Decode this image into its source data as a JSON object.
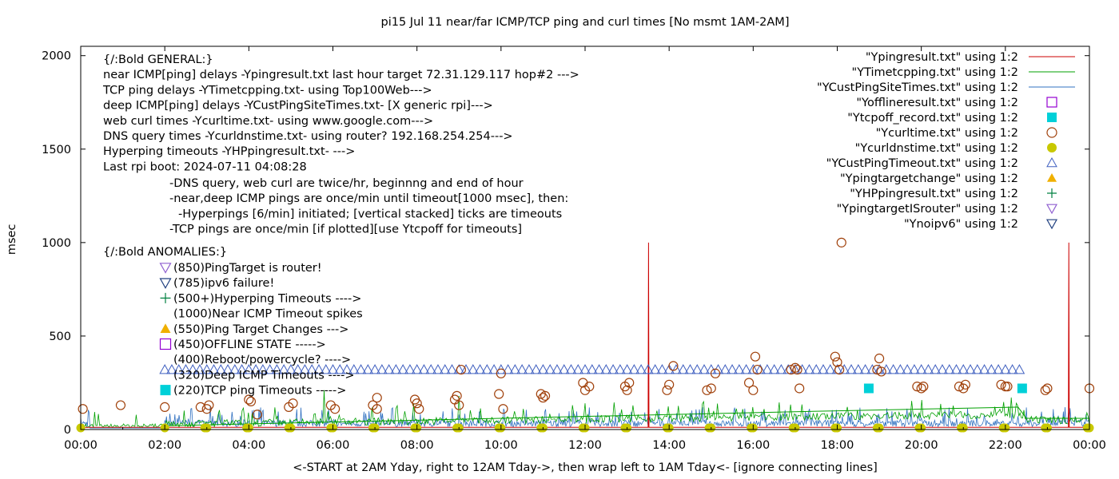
{
  "chart_data": {
    "type": "line",
    "title": "pi15 Jul 11  near/far ICMP/TCP ping and curl times [No msmt 1AM-2AM]",
    "xlabel": "<-START at 2AM Yday, right to 12AM Tday->, then wrap left to 1AM Tday<- [ignore connecting lines]",
    "ylabel": "msec",
    "xlim": [
      0,
      24
    ],
    "ylim": [
      0,
      2050
    ],
    "x_ticks": [
      "00:00",
      "02:00",
      "04:00",
      "06:00",
      "08:00",
      "10:00",
      "12:00",
      "14:00",
      "16:00",
      "18:00",
      "20:00",
      "22:00",
      "00:00"
    ],
    "y_ticks": [
      0,
      500,
      1000,
      1500,
      2000
    ],
    "legend_position": "top-right",
    "legend": [
      {
        "label": "\"Ypingresult.txt\" using 1:2",
        "style": "line",
        "color": "#cc0000"
      },
      {
        "label": "\"YTimetcpping.txt\" using 1:2",
        "style": "line",
        "color": "#00a000"
      },
      {
        "label": "\"YCustPingSiteTimes.txt\" using 1:2",
        "style": "line",
        "color": "#3070c0"
      },
      {
        "label": "\"Yofflineresult.txt\" using 1:2",
        "style": "open-square",
        "color": "#9400d3"
      },
      {
        "label": "\"Ytcpoff_record.txt\" using 1:2",
        "style": "filled-square",
        "color": "#00d0d8"
      },
      {
        "label": "\"Ycurltime.txt\" using 1:2",
        "style": "open-circle",
        "color": "#a0400a"
      },
      {
        "label": "\"Ycurldnstime.txt\" using 1:2",
        "style": "filled-circle",
        "color": "#c8c800"
      },
      {
        "label": "\"YCustPingTimeout.txt\" using 1:2",
        "style": "open-triangle-up",
        "color": "#4060c0"
      },
      {
        "label": "\"Ypingtargetchange\" using 1:2",
        "style": "filled-triangle-up",
        "color": "#f0b000"
      },
      {
        "label": "\"YHPpingresult.txt\" using 1:2",
        "style": "plus",
        "color": "#008040"
      },
      {
        "label": "\"YpingtargetISrouter\" using 1:2",
        "style": "open-triangle-down",
        "color": "#9060d0"
      },
      {
        "label": "\"Ynoipv6\" using 1:2",
        "style": "open-triangle-down",
        "color": "#204080"
      }
    ],
    "annotations_general": [
      "{/:Bold GENERAL:}",
      "near ICMP[ping] delays -Ypingresult.txt last hour target 72.31.129.117 hop#2 --->",
      "TCP ping delays -YTimetcpping.txt- using Top100Web--->",
      "deep ICMP[ping] delays -YCustPingSiteTimes.txt- [X generic rpi]--->",
      "web curl times -Ycurltime.txt- using www.google.com--->",
      "DNS query times -Ycurldnstime.txt- using router? 192.168.254.254--->",
      "Hyperping timeouts -YHPpingresult.txt- --->",
      "Last rpi boot: 2024-07-11 04:08:28"
    ],
    "annotations_notes": [
      "-DNS query, web curl are twice/hr, beginnng and end of hour",
      "-near,deep ICMP pings are once/min until timeout[1000 msec], then:",
      "-Hyperpings [6/min] initiated; [vertical stacked] ticks are timeouts",
      "-TCP pings are once/min [if plotted][use Ytcpoff for timeouts]"
    ],
    "annotations_anomalies_title": "{/:Bold ANOMALIES:}",
    "annotations_anomalies": [
      {
        "text": "(850)PingTarget is router!",
        "marker": "open-triangle-down",
        "color": "#9060d0"
      },
      {
        "text": "(785)ipv6 failure!",
        "marker": "open-triangle-down",
        "color": "#204080"
      },
      {
        "text": "(500+)Hyperping Timeouts ---->",
        "marker": "plus",
        "color": "#008040"
      },
      {
        "text": "(1000)Near ICMP Timeout spikes",
        "marker": "none",
        "color": "#000000"
      },
      {
        "text": "(550)Ping Target Changes --->",
        "marker": "filled-triangle-up",
        "color": "#f0b000"
      },
      {
        "text": "(450)OFFLINE STATE ----->",
        "marker": "open-square",
        "color": "#9400d3"
      },
      {
        "text": "(400)Reboot/powercycle? ---->",
        "marker": "none",
        "color": "#000000"
      },
      {
        "text": "(320)Deep ICMP Timeouts ---->",
        "marker": "none",
        "color": "#000000"
      },
      {
        "text": "(220)TCP ping Timeouts ----->",
        "marker": "filled-square",
        "color": "#00d0d8"
      }
    ],
    "series": [
      {
        "name": "\"Ypingresult.txt\" using 1:2",
        "style": "line",
        "color": "#cc0000",
        "description_points": [
          [
            0,
            12
          ],
          [
            13.5,
            12
          ],
          [
            13.51,
            1000
          ],
          [
            13.52,
            12
          ],
          [
            23.5,
            12
          ],
          [
            23.51,
            1000
          ],
          [
            23.52,
            12
          ],
          [
            24,
            12
          ]
        ]
      },
      {
        "name": "\"YTimetcpping.txt\" using 1:2",
        "style": "line",
        "color": "#00a000",
        "noise_range": [
          20,
          80
        ],
        "trend": [
          [
            2.0,
            20
          ],
          [
            6.0,
            40
          ],
          [
            10.0,
            60
          ],
          [
            14.0,
            80
          ],
          [
            18.0,
            100
          ],
          [
            22.3,
            120
          ],
          [
            22.5,
            60
          ],
          [
            24,
            60
          ]
        ],
        "spikes": [
          [
            5.8,
            210
          ],
          [
            9.0,
            180
          ],
          [
            12.0,
            140
          ],
          [
            16.0,
            120
          ]
        ]
      },
      {
        "name": "\"YCustPingSiteTimes.txt\" using 1:2",
        "style": "line",
        "color": "#3070c0",
        "noise_range": [
          15,
          90
        ],
        "spikes": [
          [
            0.2,
            90
          ],
          [
            2.3,
            60
          ],
          [
            4.1,
            60
          ],
          [
            7.4,
            110
          ],
          [
            9.0,
            80
          ],
          [
            11.0,
            60
          ],
          [
            14.5,
            90
          ],
          [
            19.0,
            70
          ]
        ]
      },
      {
        "name": "\"Ytcpoff_record.txt\" using 1:2",
        "style": "filled-square",
        "color": "#00d0d8",
        "points": [
          [
            18.75,
            220
          ],
          [
            22.4,
            220
          ]
        ]
      },
      {
        "name": "\"Ycurltime.txt\" using 1:2",
        "style": "open-circle",
        "color": "#a0400a",
        "points": [
          [
            0.05,
            110
          ],
          [
            0.95,
            130
          ],
          [
            2.0,
            120
          ],
          [
            2.85,
            120
          ],
          [
            3.0,
            110
          ],
          [
            3.05,
            130
          ],
          [
            4.0,
            160
          ],
          [
            4.05,
            150
          ],
          [
            4.2,
            80
          ],
          [
            4.95,
            120
          ],
          [
            5.05,
            140
          ],
          [
            5.95,
            130
          ],
          [
            6.05,
            110
          ],
          [
            6.95,
            130
          ],
          [
            7.05,
            110
          ],
          [
            7.05,
            170
          ],
          [
            7.95,
            160
          ],
          [
            8.0,
            140
          ],
          [
            8.05,
            110
          ],
          [
            8.9,
            160
          ],
          [
            8.95,
            180
          ],
          [
            9.0,
            130
          ],
          [
            9.05,
            320
          ],
          [
            9.95,
            190
          ],
          [
            10.0,
            300
          ],
          [
            10.05,
            110
          ],
          [
            10.95,
            190
          ],
          [
            11.0,
            170
          ],
          [
            11.05,
            180
          ],
          [
            11.95,
            250
          ],
          [
            12.0,
            210
          ],
          [
            12.1,
            230
          ],
          [
            12.95,
            230
          ],
          [
            13.0,
            210
          ],
          [
            13.05,
            250
          ],
          [
            13.95,
            210
          ],
          [
            14.0,
            240
          ],
          [
            14.1,
            340
          ],
          [
            14.9,
            210
          ],
          [
            15.0,
            220
          ],
          [
            15.1,
            300
          ],
          [
            15.9,
            250
          ],
          [
            16.0,
            210
          ],
          [
            16.05,
            390
          ],
          [
            16.1,
            320
          ],
          [
            16.9,
            320
          ],
          [
            17.0,
            330
          ],
          [
            17.05,
            320
          ],
          [
            17.1,
            220
          ],
          [
            17.95,
            390
          ],
          [
            18.0,
            360
          ],
          [
            18.05,
            320
          ],
          [
            18.1,
            1000
          ],
          [
            18.95,
            320
          ],
          [
            19.0,
            380
          ],
          [
            19.05,
            310
          ],
          [
            19.9,
            230
          ],
          [
            20.0,
            220
          ],
          [
            20.05,
            230
          ],
          [
            20.9,
            230
          ],
          [
            21.0,
            220
          ],
          [
            21.05,
            240
          ],
          [
            21.9,
            240
          ],
          [
            22.0,
            230
          ],
          [
            22.05,
            230
          ],
          [
            22.95,
            210
          ],
          [
            23.0,
            220
          ],
          [
            24.0,
            220
          ]
        ]
      },
      {
        "name": "\"Ycurldnstime.txt\" using 1:2",
        "style": "filled-circle",
        "color": "#c8c800",
        "points": "twice hourly at y=0 from 02:00 to 00:00 and 00:00 to 01:00"
      },
      {
        "name": "\"YCustPingTimeout.txt\" using 1:2",
        "style": "open-triangle-up",
        "color": "#4060c0",
        "points": "every ~10 min at y=320 from 02:00 to 22:30"
      }
    ]
  }
}
